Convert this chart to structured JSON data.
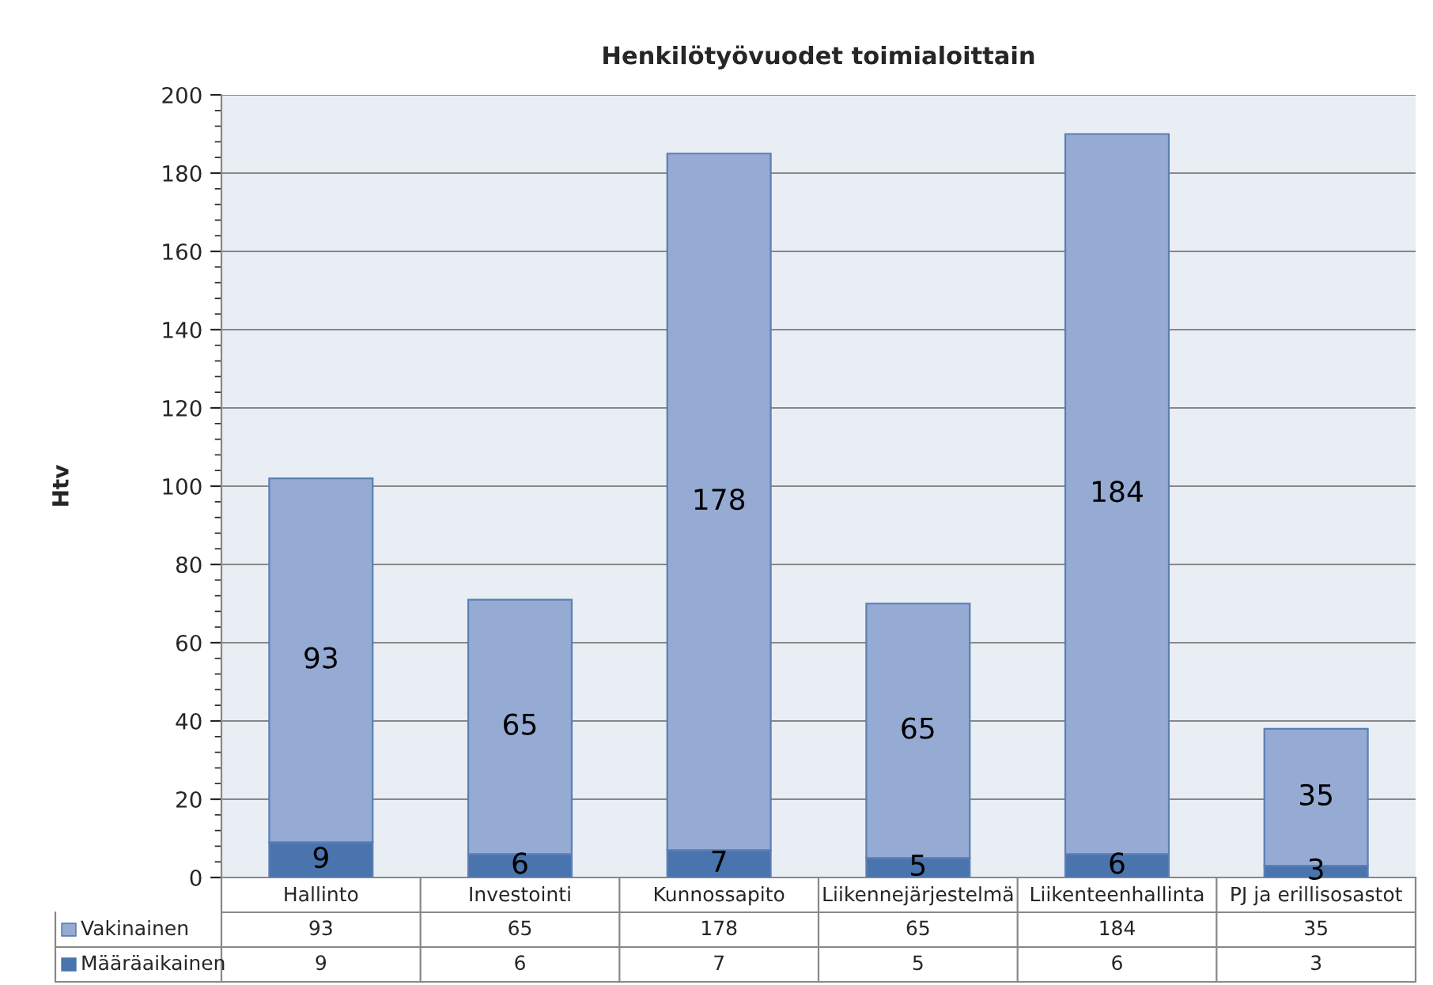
{
  "chart_data": {
    "type": "bar",
    "title": "Henkilötyövuodet toimialoittain",
    "ylabel": "Htv",
    "categories": [
      "Hallinto",
      "Investointi",
      "Kunnossapito",
      "Liikennejärjestelmä",
      "Liikenteenhallinta",
      "PJ ja erillisosastot"
    ],
    "stacked": true,
    "data_labels": true,
    "legend": "bottom",
    "grid": "y",
    "ylim": [
      0,
      200
    ],
    "yticks": [
      0,
      20,
      40,
      60,
      80,
      100,
      120,
      140,
      160,
      180,
      200
    ],
    "series": [
      {
        "name": "Määräaikainen",
        "color": "#4a74ad",
        "values": [
          9,
          6,
          7,
          5,
          6,
          3
        ]
      },
      {
        "name": "Vakinainen",
        "color": "#95abd3",
        "values": [
          93,
          65,
          178,
          65,
          184,
          35
        ]
      }
    ],
    "annotations": [
      "93",
      "65",
      "178",
      "65",
      "184",
      "35",
      "9",
      "6",
      "7",
      "5",
      "6",
      "3"
    ]
  }
}
